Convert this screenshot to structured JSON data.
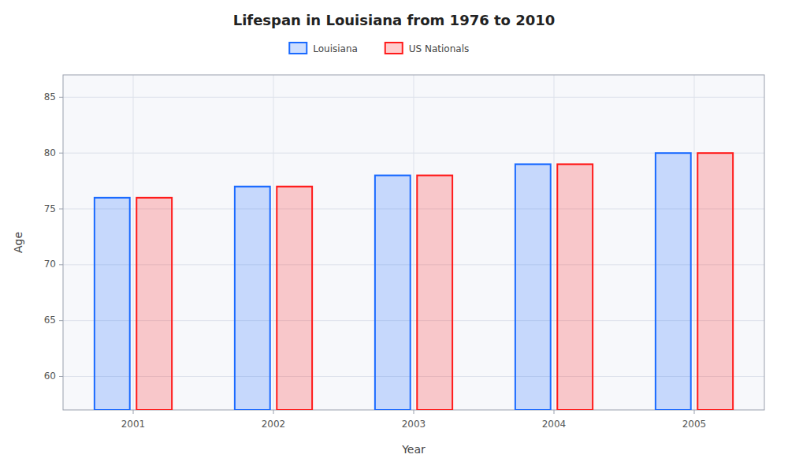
{
  "chart_data": {
    "type": "bar",
    "title": "Lifespan in Louisiana from 1976 to 2010",
    "xlabel": "Year",
    "ylabel": "Age",
    "categories": [
      "2001",
      "2002",
      "2003",
      "2004",
      "2005"
    ],
    "series": [
      {
        "name": "Louisiana",
        "color": "#1a6aff",
        "values": [
          76,
          77,
          78,
          79,
          80
        ]
      },
      {
        "name": "US Nationals",
        "color": "#ff1a1a",
        "values": [
          76,
          77,
          78,
          79,
          80
        ]
      }
    ],
    "ylim": [
      57,
      87
    ],
    "yticks": [
      60,
      65,
      70,
      75,
      80,
      85
    ],
    "grid": true,
    "legend": "top"
  }
}
